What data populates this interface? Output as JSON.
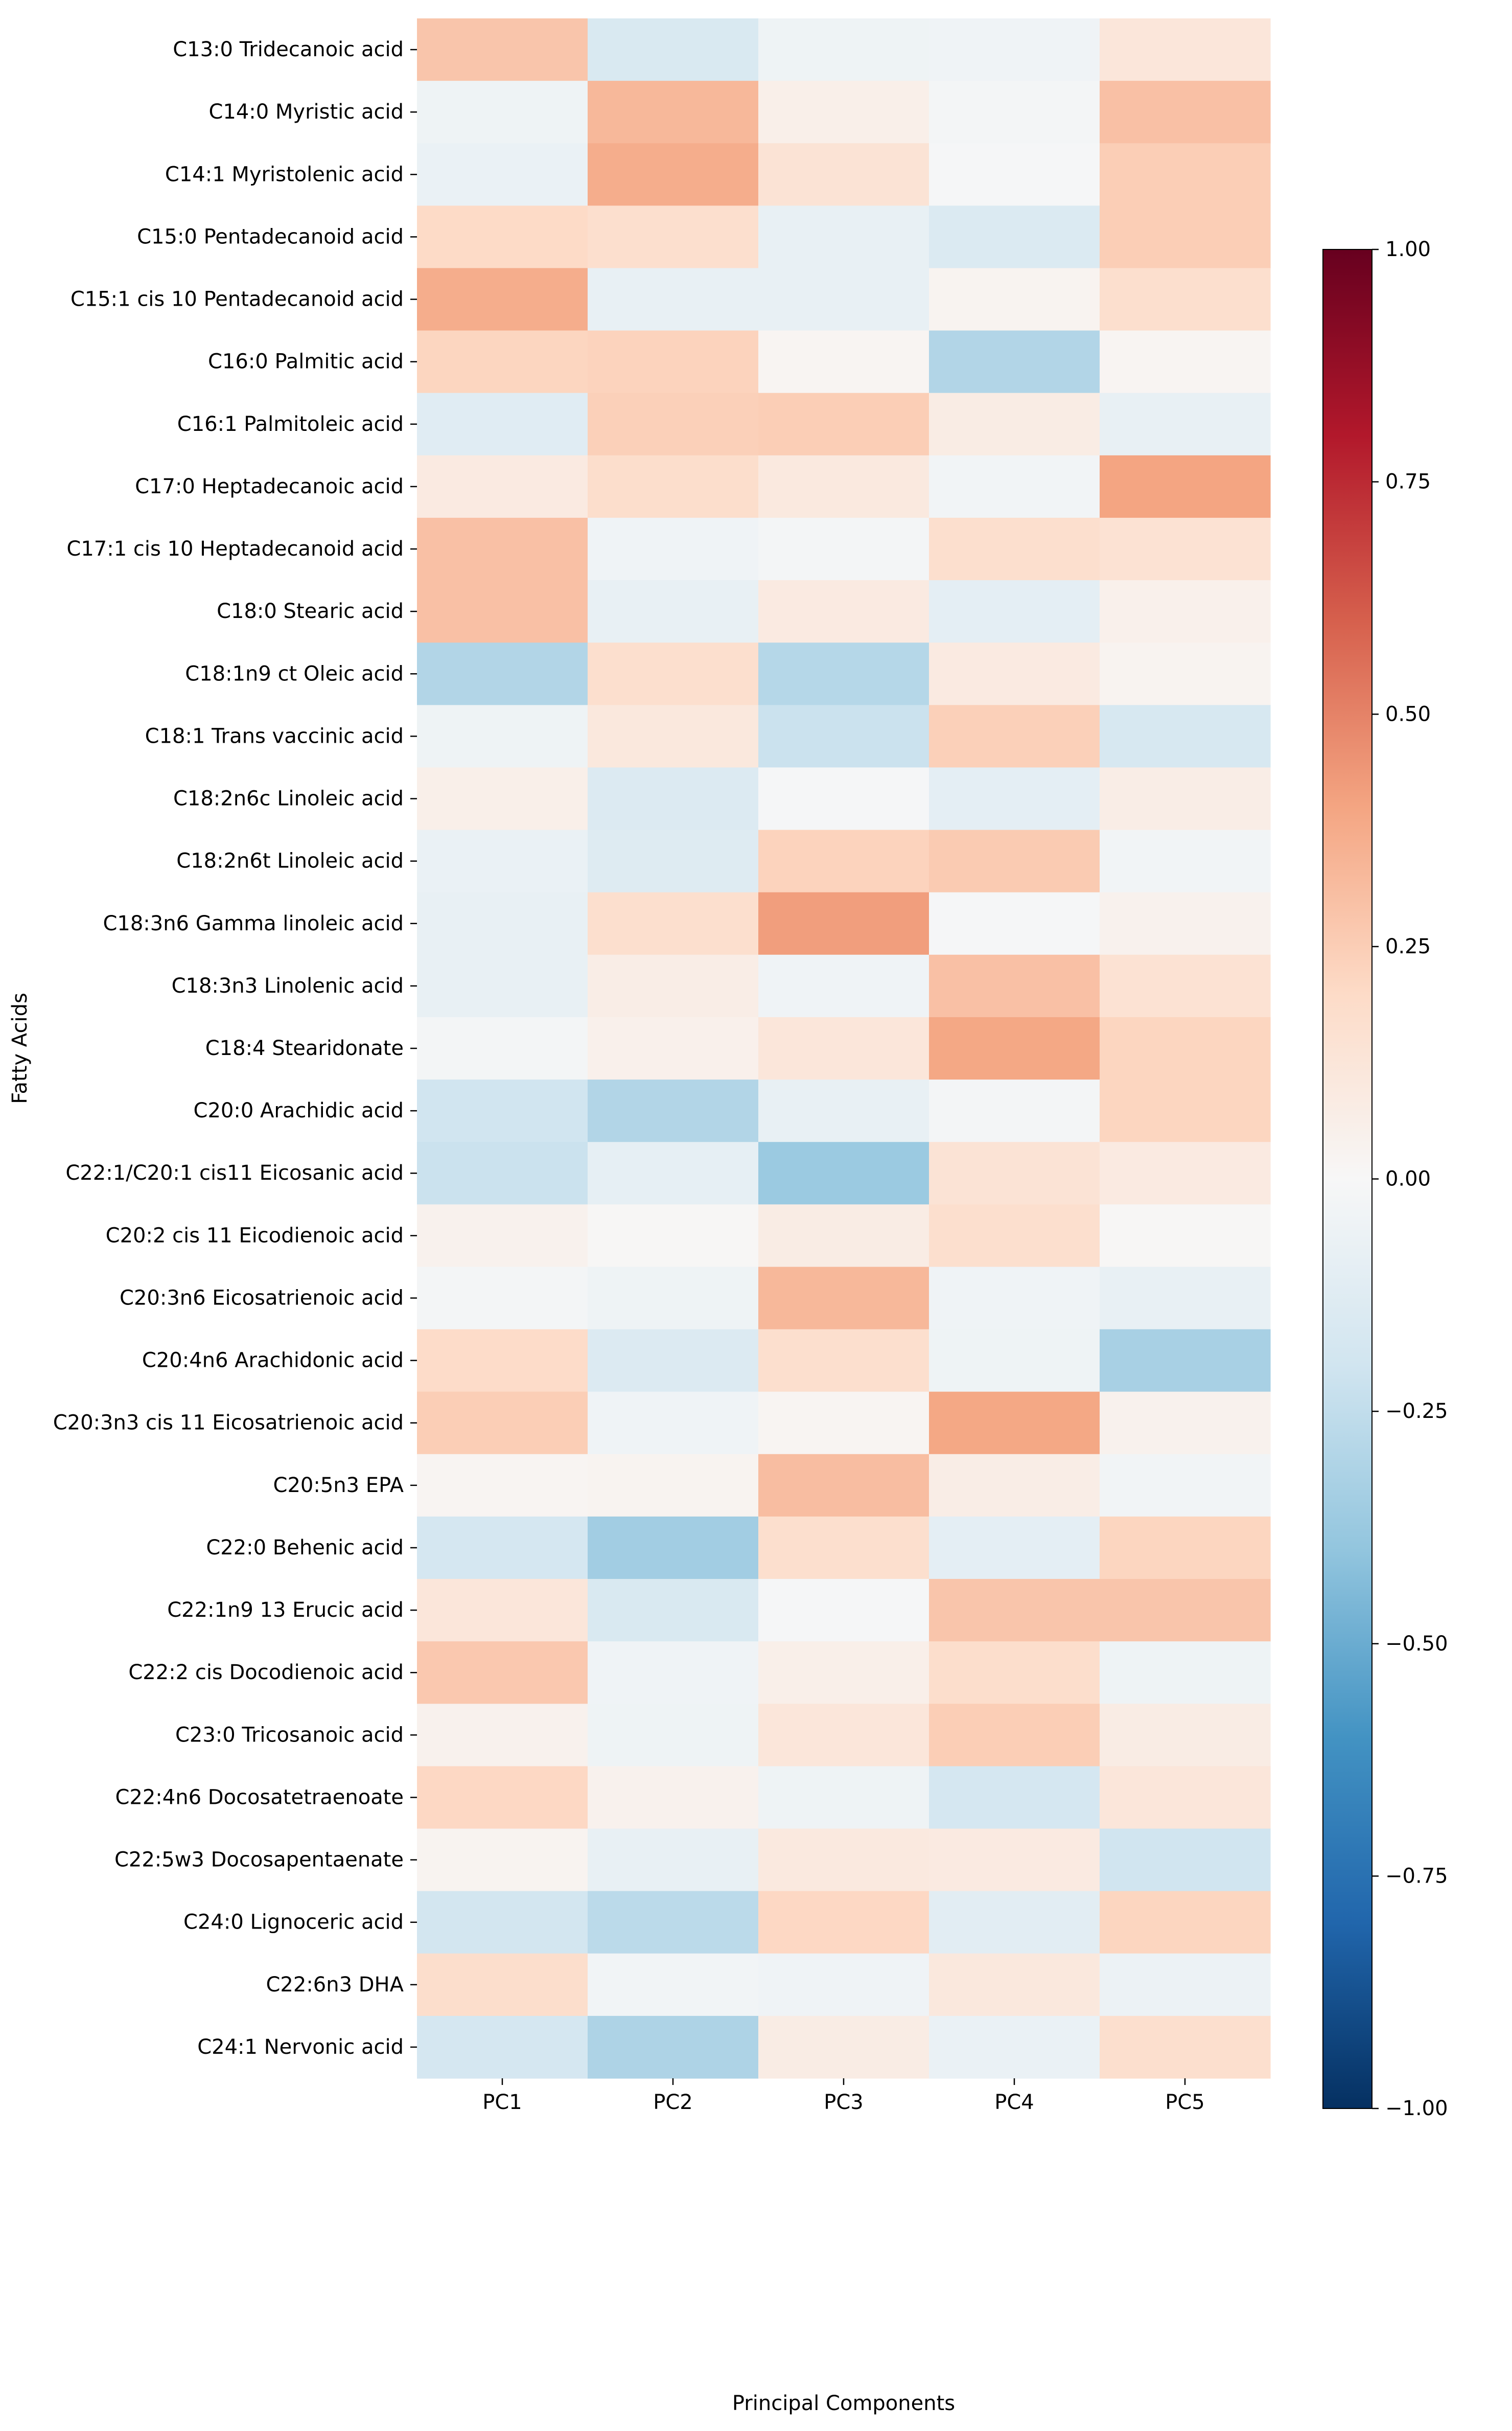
{
  "chart_data": {
    "type": "heatmap",
    "title": "",
    "xlabel": "Principal Components",
    "ylabel": "Fatty Acids",
    "columns": [
      "PC1",
      "PC2",
      "PC3",
      "PC4",
      "PC5"
    ],
    "rows": [
      "C13:0 Tridecanoic acid",
      "C14:0 Myristic acid",
      "C14:1 Myristolenic acid",
      "C15:0 Pentadecanoid acid",
      "C15:1 cis 10 Pentadecanoid acid",
      "C16:0 Palmitic acid",
      "C16:1 Palmitoleic acid",
      "C17:0 Heptadecanoic acid",
      "C17:1 cis 10  Heptadecanoid acid",
      "C18:0 Stearic acid",
      "C18:1n9 ct Oleic acid",
      "C18:1 Trans vaccinic acid",
      "C18:2n6c Linoleic acid",
      "C18:2n6t Linoleic acid",
      "C18:3n6 Gamma linoleic acid",
      "C18:3n3 Linolenic acid",
      "C18:4 Stearidonate",
      "C20:0 Arachidic acid",
      "C22:1/C20:1 cis11  Eicosanic acid",
      "C20:2 cis 11 Eicodienoic acid",
      "C20:3n6 Eicosatrienoic acid",
      "C20:4n6 Arachidonic acid",
      "C20:3n3 cis 11 Eicosatrienoic acid",
      "C20:5n3 EPA",
      "C22:0 Behenic acid",
      "C22:1n9 13 Erucic acid",
      "C22:2 cis Docodienoic acid",
      "C23:0 Tricosanoic acid",
      "C22:4n6 Docosatetraenoate",
      "C22:5w3 Docosapentaenate",
      "C24:0 Lignoceric acid",
      "C22:6n3 DHA",
      "C24:1 Nervonic acid"
    ],
    "values": [
      [
        0.28,
        -0.16,
        -0.05,
        -0.04,
        0.12
      ],
      [
        -0.05,
        0.33,
        0.06,
        -0.02,
        0.3
      ],
      [
        -0.07,
        0.37,
        0.14,
        -0.01,
        0.25
      ],
      [
        0.2,
        0.17,
        -0.08,
        -0.15,
        0.25
      ],
      [
        0.37,
        -0.08,
        -0.08,
        0.03,
        0.17
      ],
      [
        0.22,
        0.23,
        0.02,
        -0.3,
        0.02
      ],
      [
        -0.12,
        0.24,
        0.25,
        0.08,
        -0.08
      ],
      [
        0.09,
        0.18,
        0.1,
        -0.03,
        0.4
      ],
      [
        0.3,
        -0.04,
        -0.02,
        0.17,
        0.15
      ],
      [
        0.3,
        -0.08,
        0.09,
        -0.1,
        0.05
      ],
      [
        -0.3,
        0.17,
        -0.29,
        0.09,
        0.03
      ],
      [
        -0.05,
        0.11,
        -0.22,
        0.24,
        -0.17
      ],
      [
        0.06,
        -0.14,
        -0.01,
        -0.1,
        0.07
      ],
      [
        -0.07,
        -0.13,
        0.23,
        0.26,
        -0.03
      ],
      [
        -0.08,
        0.17,
        0.42,
        -0.01,
        0.04
      ],
      [
        -0.08,
        0.07,
        -0.04,
        0.3,
        0.15
      ],
      [
        -0.02,
        0.05,
        0.12,
        0.39,
        0.22
      ],
      [
        -0.2,
        -0.3,
        -0.08,
        -0.02,
        0.22
      ],
      [
        -0.22,
        -0.09,
        -0.37,
        0.14,
        0.09
      ],
      [
        0.04,
        0.01,
        0.08,
        0.17,
        0.01
      ],
      [
        -0.02,
        -0.05,
        0.33,
        -0.04,
        -0.08
      ],
      [
        0.19,
        -0.14,
        0.17,
        -0.05,
        -0.33
      ],
      [
        0.25,
        -0.04,
        0.02,
        0.39,
        0.04
      ],
      [
        0.02,
        0.03,
        0.31,
        0.07,
        -0.03
      ],
      [
        -0.18,
        -0.35,
        0.17,
        -0.1,
        0.22
      ],
      [
        0.12,
        -0.16,
        -0.01,
        0.28,
        0.28
      ],
      [
        0.27,
        -0.04,
        0.06,
        0.18,
        -0.05
      ],
      [
        0.04,
        -0.05,
        0.12,
        0.25,
        0.08
      ],
      [
        0.21,
        0.04,
        -0.05,
        -0.18,
        0.12
      ],
      [
        0.03,
        -0.08,
        0.1,
        0.09,
        -0.2
      ],
      [
        -0.19,
        -0.27,
        0.21,
        -0.11,
        0.22
      ],
      [
        0.18,
        -0.03,
        -0.04,
        0.11,
        -0.06
      ],
      [
        -0.18,
        -0.31,
        0.08,
        -0.07,
        0.17
      ]
    ],
    "colorbar": {
      "range": [
        -1.0,
        1.0
      ],
      "ticks": [
        1.0,
        0.75,
        0.5,
        0.25,
        0.0,
        -0.25,
        -0.5,
        -0.75,
        -1.0
      ],
      "tick_labels": [
        "1.00",
        "0.75",
        "0.50",
        "0.25",
        "0.00",
        "−0.25",
        "−0.50",
        "−0.75",
        "−1.00"
      ],
      "colormap": "RdBu_r",
      "stops": [
        "#053061",
        "#2166ac",
        "#4393c3",
        "#92c5de",
        "#d1e5f0",
        "#f7f7f7",
        "#fddbc7",
        "#f4a582",
        "#d6604d",
        "#b2182b",
        "#67001f"
      ]
    }
  }
}
